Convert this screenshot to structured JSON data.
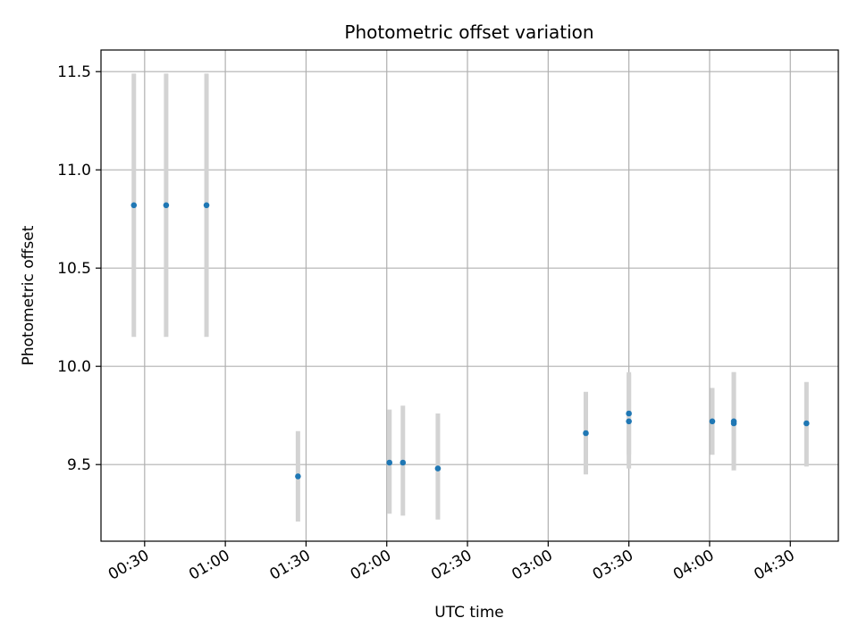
{
  "chart_data": {
    "type": "scatter",
    "title": "Photometric offset variation",
    "xlabel": "UTC time",
    "ylabel": "Photometric offset",
    "grid": true,
    "x_tick_labels": [
      "00:30",
      "01:00",
      "01:30",
      "02:00",
      "02:30",
      "03:00",
      "03:30",
      "04:00",
      "04:30"
    ],
    "y_tick_labels": [
      "9.5",
      "10.0",
      "10.5",
      "11.0",
      "11.5"
    ],
    "y_ticks": [
      9.5,
      10.0,
      10.5,
      11.0,
      11.5
    ],
    "xlim": [
      "00:13:47",
      "04:47:51"
    ],
    "ylim": [
      9.11,
      11.61
    ],
    "point_color": "#1f77b4",
    "errorbar_color": "#d3d3d3",
    "points": [
      {
        "x": "00:26",
        "y": 10.82,
        "ylow": 10.15,
        "yhigh": 11.49
      },
      {
        "x": "00:38",
        "y": 10.82,
        "ylow": 10.15,
        "yhigh": 11.49
      },
      {
        "x": "00:53",
        "y": 10.82,
        "ylow": 10.15,
        "yhigh": 11.49
      },
      {
        "x": "01:27",
        "y": 9.44,
        "ylow": 9.21,
        "yhigh": 9.67
      },
      {
        "x": "02:01",
        "y": 9.51,
        "ylow": 9.25,
        "yhigh": 9.78
      },
      {
        "x": "02:06",
        "y": 9.51,
        "ylow": 9.24,
        "yhigh": 9.8
      },
      {
        "x": "02:19",
        "y": 9.48,
        "ylow": 9.22,
        "yhigh": 9.76
      },
      {
        "x": "03:14",
        "y": 9.66,
        "ylow": 9.45,
        "yhigh": 9.87
      },
      {
        "x": "03:30",
        "y": 9.72,
        "ylow": 9.48,
        "yhigh": 9.96
      },
      {
        "x": "03:30",
        "y": 9.76,
        "ylow": 9.55,
        "yhigh": 9.97
      },
      {
        "x": "04:01",
        "y": 9.72,
        "ylow": 9.55,
        "yhigh": 9.89
      },
      {
        "x": "04:09",
        "y": 9.72,
        "ylow": 9.48,
        "yhigh": 9.97
      },
      {
        "x": "04:09",
        "y": 9.71,
        "ylow": 9.47,
        "yhigh": 9.97
      },
      {
        "x": "04:36",
        "y": 9.71,
        "ylow": 9.49,
        "yhigh": 9.92
      }
    ]
  }
}
